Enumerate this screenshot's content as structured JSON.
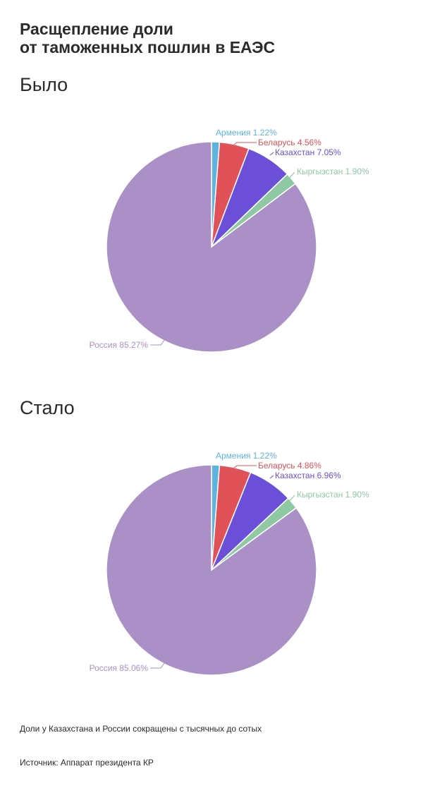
{
  "title_line1": "Расщепление доли",
  "title_line2": "от таможенных пошлин в ЕАЭС",
  "footnote": "Доли у Казахстана и России сокращены с тысячных до сотых",
  "source": "Источник: Аппарат президента КР",
  "chart_data": [
    {
      "type": "pie",
      "title": "Было",
      "slices": [
        {
          "label": "Армения",
          "value": 1.22,
          "display": "1.22%",
          "color": "#5fb3e0"
        },
        {
          "label": "Беларусь",
          "value": 4.56,
          "display": "4.56%",
          "color": "#e05258"
        },
        {
          "label": "Казахстан",
          "value": 7.05,
          "display": "7.05%",
          "color": "#6c4fd8"
        },
        {
          "label": "Кыргызстан",
          "value": 1.9,
          "display": "1.90%",
          "color": "#8ec9a3"
        },
        {
          "label": "Россия",
          "value": 85.27,
          "display": "85.27%",
          "color": "#aa90c7"
        }
      ]
    },
    {
      "type": "pie",
      "title": "Стало",
      "slices": [
        {
          "label": "Армения",
          "value": 1.22,
          "display": "1.22%",
          "color": "#5fb3e0"
        },
        {
          "label": "Беларусь",
          "value": 4.86,
          "display": "4.86%",
          "color": "#e05258"
        },
        {
          "label": "Казахстан",
          "value": 6.96,
          "display": "6.96%",
          "color": "#6c4fd8"
        },
        {
          "label": "Кыргызстан",
          "value": 1.9,
          "display": "1.90%",
          "color": "#8ec9a3"
        },
        {
          "label": "Россия",
          "value": 85.06,
          "display": "85.06%",
          "color": "#aa90c7"
        }
      ]
    }
  ]
}
